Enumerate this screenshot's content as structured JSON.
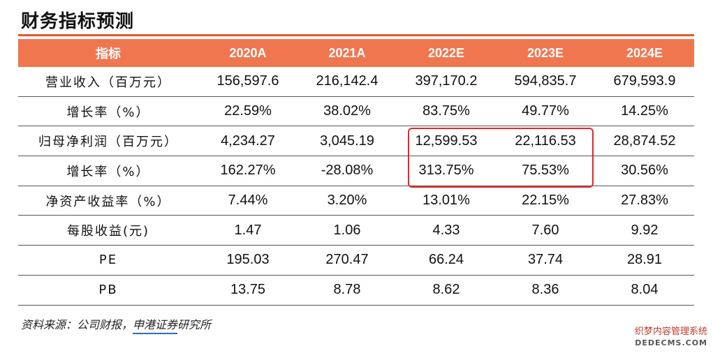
{
  "title": "财务指标预测",
  "table": {
    "header": [
      "指标",
      "2020A",
      "2021A",
      "2022E",
      "2023E",
      "2024E"
    ],
    "rows": [
      {
        "label": "营业收入（百万元）",
        "values": [
          "156,597.6",
          "216,142.4",
          "397,170.2",
          "594,835.7",
          "679,593.9"
        ]
      },
      {
        "label": "增长率（%）",
        "values": [
          "22.59%",
          "38.02%",
          "83.75%",
          "49.77%",
          "14.25%"
        ]
      },
      {
        "label": "归母净利润（百万元）",
        "values": [
          "4,234.27",
          "3,045.19",
          "12,599.53",
          "22,116.53",
          "28,874.52"
        ]
      },
      {
        "label": "增长率（%）",
        "values": [
          "162.27%",
          "-28.08%",
          "313.75%",
          "75.53%",
          "30.56%"
        ]
      },
      {
        "label": "净资产收益率（%）",
        "values": [
          "7.44%",
          "3.20%",
          "13.01%",
          "22.15%",
          "27.83%"
        ]
      },
      {
        "label": "每股收益(元)",
        "values": [
          "1.47",
          "1.06",
          "4.33",
          "7.60",
          "9.92"
        ]
      },
      {
        "label": "PE",
        "values": [
          "195.03",
          "270.47",
          "66.24",
          "37.74",
          "28.91"
        ]
      },
      {
        "label": "PB",
        "values": [
          "13.75",
          "8.78",
          "8.62",
          "8.36",
          "8.04"
        ]
      }
    ]
  },
  "source": {
    "prefix": "资料来源：公司财报，",
    "brand": "申港证券",
    "suffix": "研究所"
  },
  "watermark": {
    "line1": "织梦内容管理系统",
    "line2": "DEDECMS.COM"
  },
  "colors": {
    "header_bg": "#f07650",
    "accent_rule": "#e4572e",
    "highlight": "#e8232a"
  }
}
